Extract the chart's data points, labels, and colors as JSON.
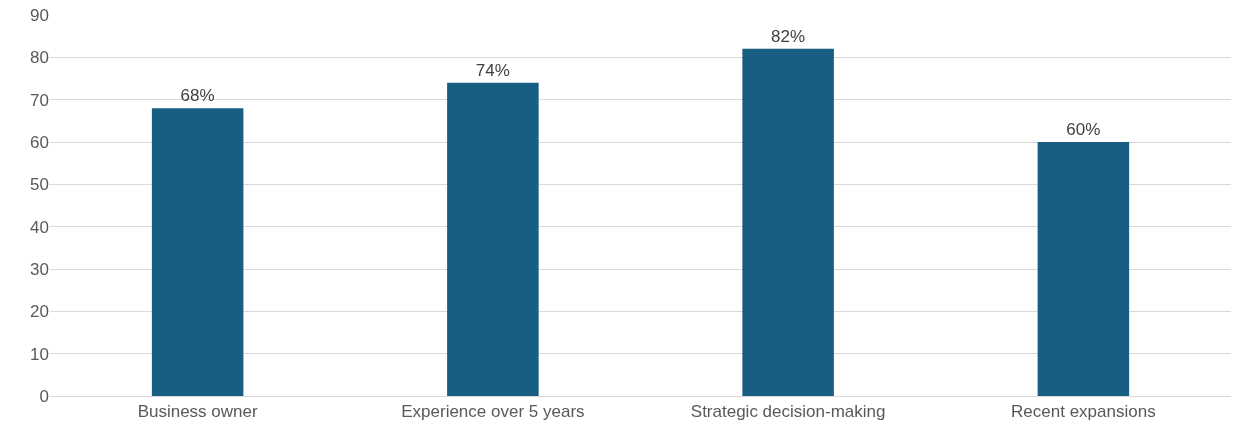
{
  "chart_data": {
    "type": "bar",
    "categories": [
      "Business owner",
      "Experience over 5 years",
      "Strategic decision-making",
      "Recent expansions"
    ],
    "values": [
      68,
      74,
      82,
      60
    ],
    "value_labels": [
      "68%",
      "74%",
      "82%",
      "60%"
    ],
    "color": "#175e82",
    "ylim": [
      0,
      90
    ],
    "yticks": [
      0,
      10,
      20,
      30,
      40,
      50,
      60,
      70,
      80,
      90
    ],
    "grid": "y",
    "legend": false
  }
}
